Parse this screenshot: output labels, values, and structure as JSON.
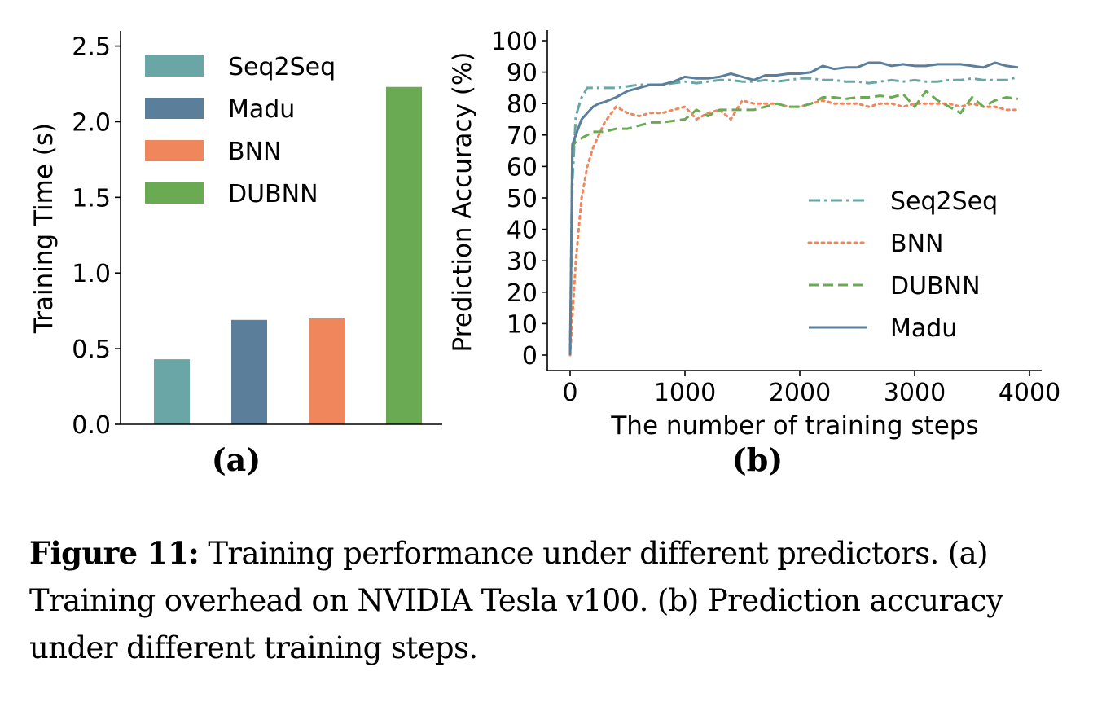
{
  "chart_data": [
    {
      "type": "bar",
      "panel_label": "(a)",
      "ylabel": "Training Time (s)",
      "xlabel": "",
      "ylim": [
        0,
        2.6
      ],
      "yticks": [
        "0.0",
        "0.5",
        "1.0",
        "1.5",
        "2.0",
        "2.5"
      ],
      "ytick_values": [
        0,
        0.5,
        1.0,
        1.5,
        2.0,
        2.5
      ],
      "legend_position": "top-left",
      "categories": [
        "Seq2Seq",
        "Madu",
        "BNN",
        "DUBNN"
      ],
      "values": [
        0.43,
        0.69,
        0.7,
        2.23
      ],
      "colors": [
        "#6aa6a6",
        "#5b7f9b",
        "#ef865c",
        "#6aaa53"
      ]
    },
    {
      "type": "line",
      "panel_label": "(b)",
      "xlabel": "The number of training steps",
      "ylabel": "Prediction Accuracy (%)",
      "xlim": [
        -100,
        4100
      ],
      "ylim": [
        -5,
        100
      ],
      "xticks": [
        "0",
        "1000",
        "2000",
        "3000",
        "4000"
      ],
      "xtick_values": [
        0,
        1000,
        2000,
        3000,
        4000
      ],
      "yticks": [
        "0",
        "10",
        "20",
        "30",
        "40",
        "50",
        "60",
        "70",
        "80",
        "90",
        "100"
      ],
      "ytick_values": [
        0,
        10,
        20,
        30,
        40,
        50,
        60,
        70,
        80,
        90,
        100
      ],
      "legend_position": "center-right",
      "series": [
        {
          "name": "Seq2Seq",
          "color": "#6aa6a6",
          "style": "dashdot",
          "x": [
            0,
            20,
            50,
            100,
            150,
            200,
            300,
            400,
            500,
            600,
            700,
            800,
            900,
            1000,
            1100,
            1200,
            1300,
            1400,
            1500,
            1600,
            1700,
            1800,
            1900,
            2000,
            2100,
            2200,
            2300,
            2400,
            2500,
            2600,
            2700,
            2800,
            2900,
            3000,
            3100,
            3200,
            3300,
            3400,
            3500,
            3600,
            3700,
            3800,
            3900
          ],
          "y": [
            0,
            55,
            76,
            82,
            85,
            85,
            85,
            85,
            85.5,
            86,
            86,
            86,
            86.5,
            87,
            86.5,
            87,
            87.5,
            87.5,
            87,
            87,
            87.5,
            87,
            87.5,
            88,
            88,
            87.5,
            87.5,
            87,
            87,
            86.5,
            87,
            87.5,
            87,
            87.5,
            87,
            87,
            87.5,
            87.5,
            88,
            87.5,
            87.5,
            87.5,
            88.5
          ]
        },
        {
          "name": "BNN",
          "color": "#ef865c",
          "style": "dotted",
          "x": [
            0,
            20,
            50,
            100,
            150,
            200,
            250,
            300,
            400,
            500,
            600,
            700,
            800,
            900,
            1000,
            1100,
            1200,
            1300,
            1400,
            1500,
            1600,
            1700,
            1800,
            1900,
            2000,
            2100,
            2200,
            2300,
            2400,
            2500,
            2600,
            2700,
            2800,
            2900,
            3000,
            3100,
            3200,
            3300,
            3400,
            3500,
            3600,
            3700,
            3800,
            3900
          ],
          "y": [
            0,
            12,
            30,
            50,
            60,
            66,
            70,
            74,
            79,
            77,
            76,
            77,
            77,
            78,
            79,
            75,
            77,
            78,
            75,
            81,
            80,
            80,
            80,
            79,
            79,
            80,
            81,
            80,
            80,
            80,
            79,
            80,
            80,
            79,
            80,
            80,
            80,
            80,
            79,
            80,
            79,
            79,
            78,
            78
          ]
        },
        {
          "name": "DUBNN",
          "color": "#6aaa53",
          "style": "dashed",
          "x": [
            0,
            20,
            50,
            100,
            150,
            200,
            300,
            400,
            500,
            600,
            700,
            800,
            900,
            1000,
            1100,
            1200,
            1300,
            1400,
            1500,
            1600,
            1700,
            1800,
            1900,
            2000,
            2100,
            2200,
            2300,
            2400,
            2500,
            2600,
            2700,
            2800,
            2900,
            3000,
            3100,
            3200,
            3300,
            3400,
            3500,
            3600,
            3700,
            3800,
            3900
          ],
          "y": [
            0,
            66,
            68,
            69,
            70,
            71,
            71,
            72,
            72,
            73,
            74,
            74,
            74.5,
            75,
            78,
            76,
            78,
            78,
            78,
            78,
            79,
            80,
            79,
            79,
            80,
            82,
            82,
            81.5,
            82,
            82,
            82.5,
            82,
            83,
            79,
            84,
            81,
            79,
            77,
            82,
            79,
            81,
            82,
            81.5
          ]
        },
        {
          "name": "Madu",
          "color": "#5b7f9b",
          "style": "solid",
          "x": [
            0,
            20,
            50,
            100,
            150,
            200,
            250,
            300,
            400,
            500,
            600,
            700,
            800,
            900,
            1000,
            1100,
            1200,
            1300,
            1400,
            1500,
            1600,
            1700,
            1800,
            1900,
            2000,
            2100,
            2200,
            2300,
            2400,
            2500,
            2600,
            2700,
            2800,
            2900,
            3000,
            3100,
            3200,
            3300,
            3400,
            3500,
            3600,
            3700,
            3800,
            3900
          ],
          "y": [
            0,
            67,
            70,
            75,
            77,
            79,
            80,
            80.5,
            82,
            84,
            85,
            86,
            86,
            87,
            88.5,
            88,
            88,
            88.5,
            89.5,
            88.5,
            87.5,
            89,
            89,
            89.5,
            89.5,
            90,
            92,
            91,
            91.5,
            91.5,
            93,
            93,
            92,
            92.5,
            92,
            92,
            92.5,
            92.5,
            92.5,
            92,
            91.5,
            93,
            92,
            91.5
          ]
        }
      ]
    }
  ],
  "caption": {
    "label": "Figure 11:",
    "text": " Training performance under different predictors. (a) Training overhead on NVIDIA Tesla v100. (b) Prediction accuracy under different training steps."
  }
}
